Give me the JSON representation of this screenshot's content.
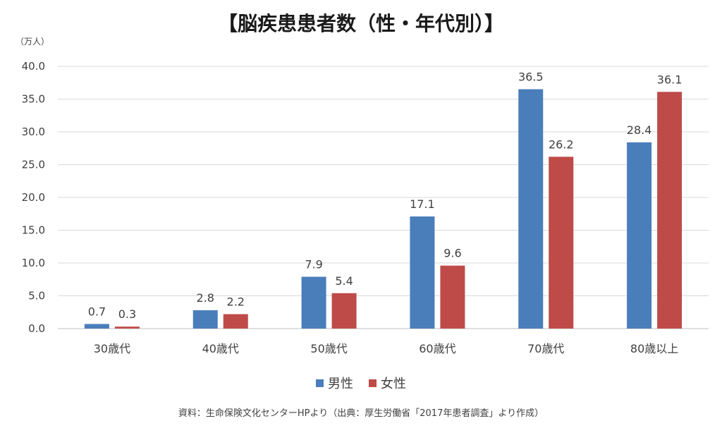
{
  "title": "【脳疾患患者数（性・年代別）】",
  "unit_label": "（万人）",
  "source": "資料：生命保険文化センターHPより（出典：厚生労働省「2017年患者調査」より作成）",
  "colors": {
    "male": "#4a7ebb",
    "female": "#be4b48",
    "grid": "#d9d9d9"
  },
  "chart_data": {
    "type": "bar",
    "categories": [
      "30歳代",
      "40歳代",
      "50歳代",
      "60歳代",
      "70歳代",
      "80歳以上"
    ],
    "series": [
      {
        "name": "男性",
        "values": [
          0.7,
          2.8,
          7.9,
          17.1,
          36.5,
          28.4
        ]
      },
      {
        "name": "女性",
        "values": [
          0.3,
          2.2,
          5.4,
          9.6,
          26.2,
          36.1
        ]
      }
    ],
    "y_ticks": [
      "0.0",
      "5.0",
      "10.0",
      "15.0",
      "20.0",
      "25.0",
      "30.0",
      "35.0",
      "40.0"
    ],
    "data_labels": [
      [
        "0.7",
        "2.8",
        "7.9",
        "17.1",
        "36.5",
        "28.4"
      ],
      [
        "0.3",
        "2.2",
        "5.4",
        "9.6",
        "26.2",
        "36.1"
      ]
    ],
    "ylim": [
      0,
      40
    ],
    "grid": true,
    "legend_position": "bottom"
  }
}
